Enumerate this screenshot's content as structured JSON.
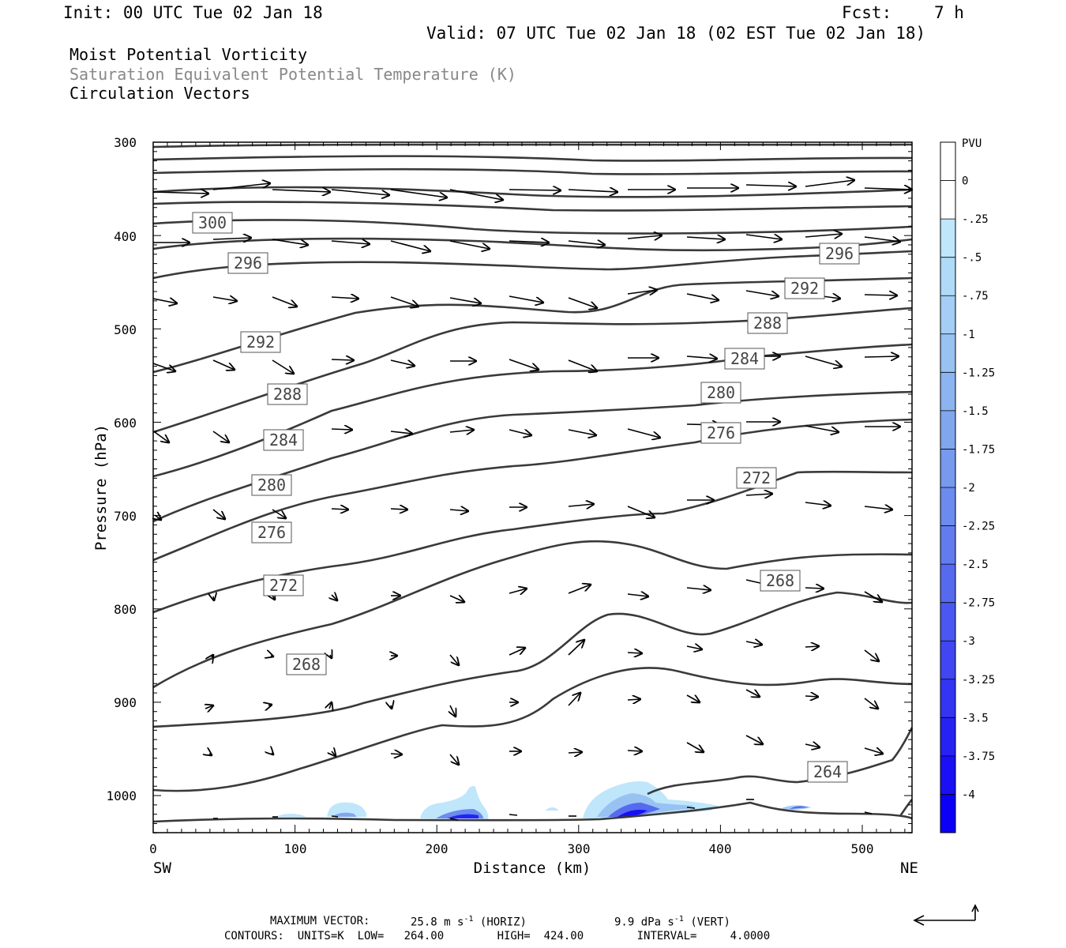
{
  "header": {
    "init": "Init: 00 UTC Tue 02 Jan 18",
    "fcst_label": "Fcst:",
    "fcst_value": "7 h",
    "valid": "Valid: 07 UTC Tue 02 Jan 18 (02 EST Tue 02 Jan 18)"
  },
  "legend": {
    "line1": "Moist Potential Vorticity",
    "line2": "Saturation Equivalent Potential Temperature (K)",
    "line3": "Circulation Vectors",
    "line2_color": "#888888"
  },
  "chart_data": {
    "type": "cross-section",
    "xlabel": "Distance (km)",
    "ylabel": "Pressure (hPa)",
    "xlim": [
      0,
      535
    ],
    "ylim": [
      1040,
      300
    ],
    "x_ticks": [
      "0",
      "100",
      "200",
      "300",
      "400",
      "500"
    ],
    "y_ticks": [
      "300",
      "400",
      "500",
      "600",
      "700",
      "800",
      "900",
      "1000"
    ],
    "x_end_labels": {
      "left": "SW",
      "right": "NE"
    },
    "contour_labels": [
      "300",
      "296",
      "296",
      "292",
      "292",
      "288",
      "288",
      "284",
      "284",
      "280",
      "280",
      "276",
      "276",
      "272",
      "272",
      "268",
      "268",
      "264"
    ],
    "colorbar": {
      "title": "PVU",
      "labels": [
        "0",
        "-.25",
        "-.5",
        "-.75",
        "-1",
        "-1.25",
        "-1.5",
        "-1.75",
        "-2",
        "-2.25",
        "-2.5",
        "-2.75",
        "-3",
        "-3.25",
        "-3.5",
        "-3.75",
        "-4"
      ],
      "colors": [
        "#ffffff",
        "#ffffff",
        "#bfe6fb",
        "#afdaf8",
        "#a4cef5",
        "#98c2f2",
        "#8cb4f0",
        "#80a7ee",
        "#7799ee",
        "#6c8bef",
        "#627cf0",
        "#566af0",
        "#4a58f1",
        "#3f46f2",
        "#3434f3",
        "#2722f4",
        "#1a10f5",
        "#0b00f6"
      ]
    }
  },
  "footer": {
    "max_vector_label": "MAXIMUM VECTOR:",
    "max_vector_horiz": "25.8 m s",
    "horiz_exp": "-1",
    "horiz_tag": "(HORIZ)",
    "max_vector_vert": "9.9 dPa s",
    "vert_exp": "-1",
    "vert_tag": "(VERT)",
    "contours": "CONTOURS:  UNITS=K  LOW=   264.00        HIGH=  424.00        INTERVAL=     4.0000"
  }
}
